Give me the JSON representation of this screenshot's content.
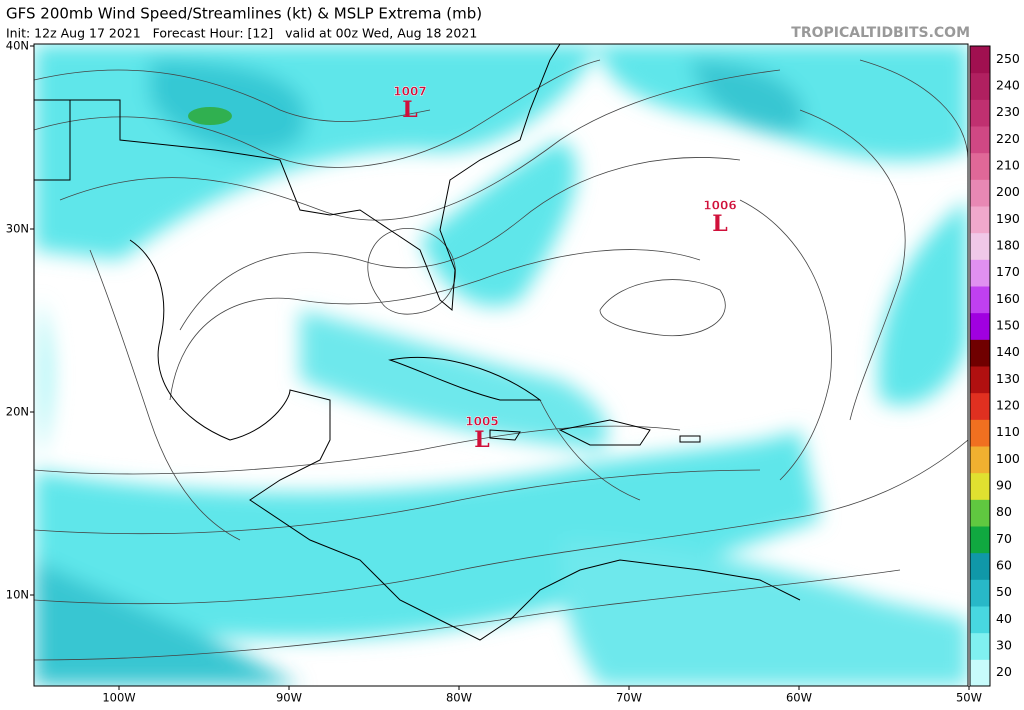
{
  "header": {
    "title": "GFS 200mb Wind Speed/Streamlines (kt) & MSLP Extrema (mb)",
    "subtitle": "Init: 12z Aug 17 2021   Forecast Hour: [12]   valid at 00z Wed, Aug 18 2021",
    "site": "TROPICALTIDBITS.COM"
  },
  "map": {
    "lat_ticks": [
      {
        "value": 40,
        "label": "40N"
      },
      {
        "value": 30,
        "label": "30N"
      },
      {
        "value": 20,
        "label": "20N"
      },
      {
        "value": 10,
        "label": "10N"
      }
    ],
    "lon_ticks": [
      {
        "value": -100,
        "label": "100W"
      },
      {
        "value": -90,
        "label": "90W"
      },
      {
        "value": -80,
        "label": "80W"
      },
      {
        "value": -70,
        "label": "70W"
      },
      {
        "value": -60,
        "label": "60W"
      },
      {
        "value": -50,
        "label": "50W"
      }
    ],
    "lows": [
      {
        "pressure": 1007,
        "symbol": "L"
      },
      {
        "pressure": 1006,
        "symbol": "L"
      },
      {
        "pressure": 1005,
        "symbol": "L"
      }
    ]
  },
  "colorbar": {
    "ticks": [
      20,
      30,
      40,
      50,
      60,
      70,
      80,
      90,
      100,
      110,
      120,
      130,
      140,
      150,
      160,
      170,
      180,
      190,
      200,
      210,
      220,
      230,
      240,
      250
    ],
    "colors": [
      "#c8fcfc",
      "#80f0f0",
      "#48d8e0",
      "#28b8c8",
      "#1098a8",
      "#10a840",
      "#60c840",
      "#e0e030",
      "#f0b030",
      "#f07020",
      "#e03020",
      "#b01010",
      "#700000",
      "#a000e0",
      "#c040f0",
      "#e090f0",
      "#f0c8e8",
      "#f0a8cc",
      "#e888b4",
      "#e06898",
      "#d04884",
      "#c03070",
      "#b02060",
      "#a01050"
    ]
  }
}
